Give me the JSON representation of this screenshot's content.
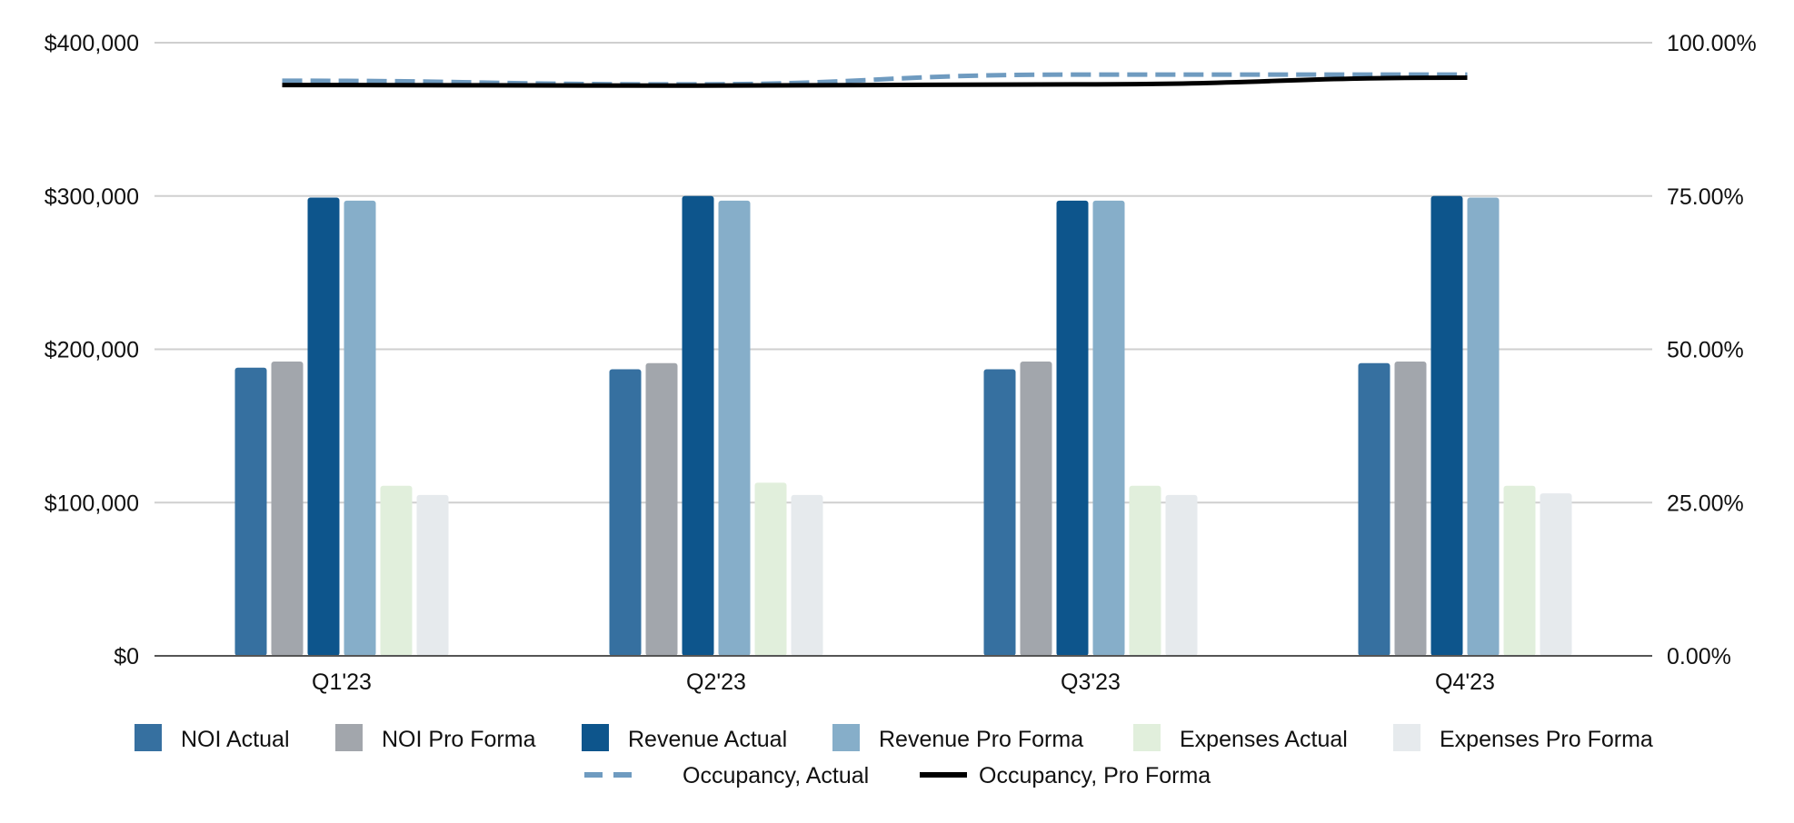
{
  "chart_data": {
    "type": "bar",
    "title": "",
    "xlabel": "",
    "ylabel": "",
    "categories": [
      "Q1'23",
      "Q2'23",
      "Q3'23",
      "Q4'23"
    ],
    "ylim": [
      0,
      400000
    ],
    "y2lim": [
      0,
      100
    ],
    "y_ticks": [
      0,
      100000,
      200000,
      300000,
      400000
    ],
    "y_tick_labels": [
      "$0",
      "$100,000",
      "$200,000",
      "$300,000",
      "$400,000"
    ],
    "y2_ticks": [
      0,
      25,
      50,
      75,
      100
    ],
    "y2_tick_labels": [
      "0.00%",
      "25.00%",
      "50.00%",
      "75.00%",
      "100.00%"
    ],
    "grid": true,
    "legend_position": "bottom",
    "series": [
      {
        "name": "NOI Actual",
        "kind": "bar",
        "color": "#3670a0",
        "values": [
          188000,
          187000,
          187000,
          191000
        ]
      },
      {
        "name": "NOI Pro Forma",
        "kind": "bar",
        "color": "#a2a6ac",
        "values": [
          192000,
          191000,
          192000,
          192000
        ]
      },
      {
        "name": "Revenue Actual",
        "kind": "bar",
        "color": "#0d558c",
        "values": [
          299000,
          300000,
          297000,
          300000
        ]
      },
      {
        "name": "Revenue Pro Forma",
        "kind": "bar",
        "color": "#86aec9",
        "values": [
          297000,
          297000,
          297000,
          299000
        ]
      },
      {
        "name": "Expenses Actual",
        "kind": "bar",
        "color": "#e1efdc",
        "values": [
          111000,
          113000,
          111000,
          111000
        ]
      },
      {
        "name": "Expenses Pro Forma",
        "kind": "bar",
        "color": "#e6eaed",
        "values": [
          105000,
          105000,
          105000,
          106000
        ]
      },
      {
        "name": "Occupancy, Actual",
        "kind": "line",
        "axis": "right",
        "dash": true,
        "color": "#6f9bc0",
        "values": [
          93.8,
          93.2,
          94.8,
          94.8
        ]
      },
      {
        "name": "Occupancy, Pro Forma",
        "kind": "line",
        "axis": "right",
        "dash": false,
        "color": "#000000",
        "values": [
          93.1,
          93.0,
          93.2,
          94.3
        ]
      }
    ]
  }
}
